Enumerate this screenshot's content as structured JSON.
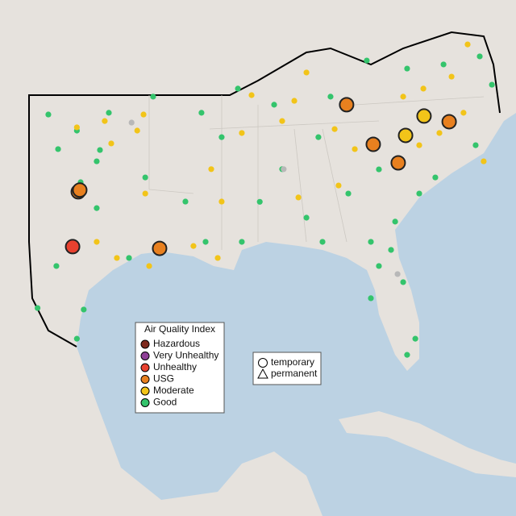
{
  "legend": {
    "title": "Air Quality Index",
    "items": [
      {
        "label": "Hazardous",
        "color": "#7e2a1e"
      },
      {
        "label": "Very Unhealthy",
        "color": "#8f3f97"
      },
      {
        "label": "Unhealthy",
        "color": "#e8412f"
      },
      {
        "label": "USG",
        "color": "#e8801f"
      },
      {
        "label": "Moderate",
        "color": "#f2c419"
      },
      {
        "label": "Good",
        "color": "#34c46c"
      }
    ]
  },
  "shape_legend": {
    "items": [
      {
        "label": "temporary",
        "shape": "circle"
      },
      {
        "label": "permanent",
        "shape": "triangle"
      }
    ]
  },
  "unclassified_color": "#b8b8b8",
  "sites": [
    [
      -100.12,
      32.56,
      3,
      "temporary"
    ],
    [
      -100.03,
      32.64,
      3,
      "temporary"
    ],
    [
      -100.45,
      30.04,
      2,
      "temporary"
    ],
    [
      -95.36,
      29.96,
      3,
      "temporary"
    ],
    [
      -84.42,
      36.56,
      3,
      "temporary"
    ],
    [
      -82.86,
      34.74,
      3,
      "temporary"
    ],
    [
      -81.4,
      33.89,
      3,
      "temporary"
    ],
    [
      -78.42,
      35.78,
      3,
      "temporary"
    ],
    [
      -79.89,
      36.04,
      4,
      "temporary"
    ],
    [
      -80.97,
      35.15,
      4,
      "temporary"
    ],
    [
      -101.87,
      36.11,
      5
    ],
    [
      -100.2,
      35.37,
      5
    ],
    [
      -101.3,
      34.52,
      5
    ],
    [
      -98.85,
      34.48,
      5
    ],
    [
      -99.98,
      33.0,
      5
    ],
    [
      -99.04,
      31.81,
      5
    ],
    [
      -101.4,
      29.15,
      5
    ],
    [
      -102.5,
      27.22,
      5
    ],
    [
      -100.2,
      25.81,
      5
    ],
    [
      -99.8,
      27.15,
      5
    ],
    [
      -97.15,
      29.52,
      5
    ],
    [
      -91.73,
      35.07,
      5
    ],
    [
      -90.55,
      30.26,
      5
    ],
    [
      -88.19,
      33.6,
      5
    ],
    [
      -89.5,
      32.1,
      5
    ],
    [
      -86.77,
      31.37,
      5
    ],
    [
      -84.32,
      32.48,
      5
    ],
    [
      -82.53,
      33.59,
      5
    ],
    [
      -85.36,
      36.93,
      5
    ],
    [
      -88.66,
      36.56,
      5
    ],
    [
      -86.07,
      35.07,
      5
    ],
    [
      -83.24,
      38.59,
      5
    ],
    [
      -80.88,
      38.22,
      5
    ],
    [
      -78.75,
      38.41,
      5
    ],
    [
      -76.63,
      38.78,
      5
    ],
    [
      -75.92,
      37.48,
      5
    ],
    [
      -76.87,
      34.7,
      5
    ],
    [
      -79.23,
      33.22,
      5
    ],
    [
      -80.17,
      32.48,
      5
    ],
    [
      -81.58,
      31.19,
      5
    ],
    [
      -81.82,
      29.89,
      5
    ],
    [
      -82.53,
      29.15,
      5
    ],
    [
      -81.11,
      28.41,
      5
    ],
    [
      -83.0,
      27.67,
      5
    ],
    [
      -80.4,
      25.81,
      5
    ],
    [
      -80.88,
      25.07,
      5
    ],
    [
      -83.0,
      30.26,
      5
    ],
    [
      -85.83,
      30.26,
      5
    ],
    [
      -92.67,
      30.26,
      5
    ],
    [
      -93.85,
      32.11,
      5
    ],
    [
      -96.2,
      33.22,
      5
    ],
    [
      -99.04,
      33.96,
      5
    ],
    [
      -98.33,
      36.19,
      5
    ],
    [
      -95.74,
      36.93,
      5
    ],
    [
      -92.91,
      36.19,
      5
    ],
    [
      -90.78,
      37.3,
      5
    ],
    [
      -100.2,
      35.52,
      4
    ],
    [
      -98.57,
      35.81,
      4
    ],
    [
      -96.3,
      36.11,
      4
    ],
    [
      -96.67,
      35.37,
      4
    ],
    [
      -98.19,
      34.78,
      4
    ],
    [
      -96.2,
      32.48,
      4
    ],
    [
      -97.86,
      29.52,
      4
    ],
    [
      -99.04,
      30.26,
      4
    ],
    [
      -95.97,
      29.15,
      4
    ],
    [
      -93.38,
      30.07,
      4
    ],
    [
      -91.96,
      29.52,
      4
    ],
    [
      -92.34,
      33.6,
      4
    ],
    [
      -91.73,
      32.11,
      4
    ],
    [
      -87.24,
      32.3,
      4
    ],
    [
      -84.89,
      32.85,
      4
    ],
    [
      -85.12,
      35.44,
      4
    ],
    [
      -83.94,
      34.52,
      4
    ],
    [
      -86.77,
      38.04,
      4
    ],
    [
      -88.19,
      35.81,
      4
    ],
    [
      -81.11,
      36.93,
      4
    ],
    [
      -79.93,
      37.3,
      4
    ],
    [
      -78.28,
      37.85,
      4
    ],
    [
      -77.58,
      36.19,
      4
    ],
    [
      -76.4,
      33.96,
      4
    ],
    [
      -80.17,
      34.7,
      4
    ],
    [
      -78.99,
      35.26,
      4
    ],
    [
      -90.55,
      35.26,
      4
    ],
    [
      -89.98,
      37.0,
      4
    ],
    [
      -87.48,
      36.74,
      4
    ],
    [
      -77.34,
      39.33,
      4
    ],
    [
      -97.0,
      35.74,
      null
    ],
    [
      -88.1,
      33.6,
      null
    ],
    [
      -81.44,
      28.78,
      null
    ]
  ]
}
